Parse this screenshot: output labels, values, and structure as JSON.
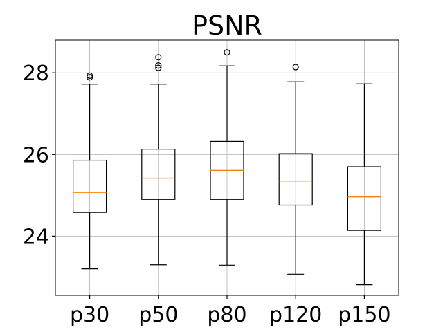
{
  "chart_data": {
    "type": "box",
    "title": "PSNR",
    "xlabel": "",
    "ylabel": "",
    "categories": [
      "p30",
      "p50",
      "p80",
      "p120",
      "p150"
    ],
    "ylim": [
      22.55,
      28.8
    ],
    "yticks": [
      24,
      26,
      28
    ],
    "ytick_labels": [
      "24",
      "26",
      "28"
    ],
    "grid": true,
    "boxes": [
      {
        "label": "p30",
        "whislo": 23.2,
        "q1": 24.58,
        "med": 25.07,
        "q3": 25.86,
        "whishi": 27.72,
        "fliers": [
          27.89,
          27.93
        ]
      },
      {
        "label": "p50",
        "whislo": 23.3,
        "q1": 24.9,
        "med": 25.42,
        "q3": 26.13,
        "whishi": 27.72,
        "fliers": [
          28.12,
          28.18,
          28.38
        ]
      },
      {
        "label": "p80",
        "whislo": 23.29,
        "q1": 24.9,
        "med": 25.61,
        "q3": 26.32,
        "whishi": 28.17,
        "fliers": [
          28.5
        ]
      },
      {
        "label": "p120",
        "whislo": 23.07,
        "q1": 24.76,
        "med": 25.35,
        "q3": 26.02,
        "whishi": 27.78,
        "fliers": [
          28.14
        ]
      },
      {
        "label": "p150",
        "whislo": 22.81,
        "q1": 24.14,
        "med": 24.96,
        "q3": 25.7,
        "whishi": 27.73,
        "fliers": []
      }
    ],
    "colors": {
      "box": "#000000",
      "median": "#ff7f0e",
      "grid": "#b0b0b0"
    }
  }
}
